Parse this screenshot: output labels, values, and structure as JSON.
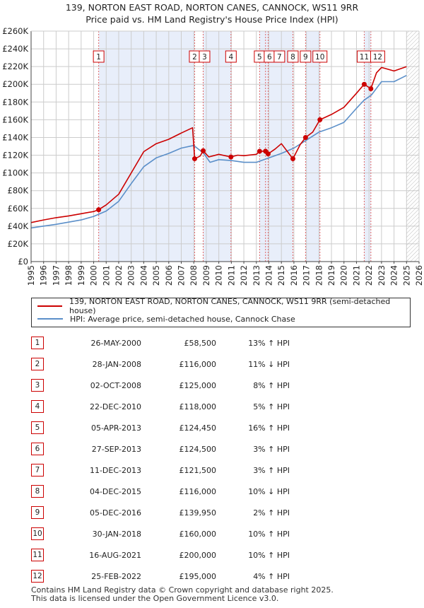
{
  "title_line1": "139, NORTON EAST ROAD, NORTON CANES, CANNOCK, WS11 9RR",
  "title_line2": "Price paid vs. HM Land Registry's House Price Index (HPI)",
  "legend": {
    "property_label": "139, NORTON EAST ROAD, NORTON CANES, CANNOCK, WS11 9RR (semi-detached house)",
    "hpi_label": "HPI: Average price, semi-detached house, Cannock Chase"
  },
  "colors": {
    "property": "#cc0000",
    "hpi": "#5b8fc9",
    "band": "#e8eefa",
    "grid": "#cccccc",
    "marker_line": "#e06666"
  },
  "sales": [
    {
      "num": "1",
      "date": "26-MAY-2000",
      "price": "£58,500",
      "hpi": "13% ↑ HPI"
    },
    {
      "num": "2",
      "date": "28-JAN-2008",
      "price": "£116,000",
      "hpi": "11% ↓ HPI"
    },
    {
      "num": "3",
      "date": "02-OCT-2008",
      "price": "£125,000",
      "hpi": "8% ↑ HPI"
    },
    {
      "num": "4",
      "date": "22-DEC-2010",
      "price": "£118,000",
      "hpi": "5% ↑ HPI"
    },
    {
      "num": "5",
      "date": "05-APR-2013",
      "price": "£124,450",
      "hpi": "16% ↑ HPI"
    },
    {
      "num": "6",
      "date": "27-SEP-2013",
      "price": "£124,500",
      "hpi": "3% ↑ HPI"
    },
    {
      "num": "7",
      "date": "11-DEC-2013",
      "price": "£121,500",
      "hpi": "3% ↑ HPI"
    },
    {
      "num": "8",
      "date": "04-DEC-2015",
      "price": "£116,000",
      "hpi": "10% ↓ HPI"
    },
    {
      "num": "9",
      "date": "05-DEC-2016",
      "price": "£139,950",
      "hpi": "2% ↑ HPI"
    },
    {
      "num": "10",
      "date": "30-JAN-2018",
      "price": "£160,000",
      "hpi": "10% ↑ HPI"
    },
    {
      "num": "11",
      "date": "16-AUG-2021",
      "price": "£200,000",
      "hpi": "10% ↑ HPI"
    },
    {
      "num": "12",
      "date": "25-FEB-2022",
      "price": "£195,000",
      "hpi": "4% ↑ HPI"
    }
  ],
  "footer_line1": "Contains HM Land Registry data © Crown copyright and database right 2025.",
  "footer_line2": "This data is licensed under the Open Government Licence v3.0.",
  "chart_data": {
    "type": "line",
    "xlim": [
      1995,
      2026
    ],
    "ylim": [
      0,
      260000
    ],
    "y_ticks": [
      0,
      20000,
      40000,
      60000,
      80000,
      100000,
      120000,
      140000,
      160000,
      180000,
      200000,
      220000,
      240000,
      260000
    ],
    "y_tick_labels": [
      "£0",
      "£20K",
      "£40K",
      "£60K",
      "£80K",
      "£100K",
      "£120K",
      "£140K",
      "£160K",
      "£180K",
      "£200K",
      "£220K",
      "£240K",
      "£260K"
    ],
    "x_ticks": [
      1995,
      1996,
      1997,
      1998,
      1999,
      2000,
      2001,
      2002,
      2003,
      2004,
      2005,
      2006,
      2007,
      2008,
      2009,
      2010,
      2011,
      2012,
      2013,
      2014,
      2015,
      2016,
      2017,
      2018,
      2019,
      2020,
      2021,
      2022,
      2023,
      2024,
      2025,
      2026
    ],
    "grid": true,
    "shaded_bands": [
      [
        2000.4,
        2008.07
      ],
      [
        2008.75,
        2010.97
      ],
      [
        2013.26,
        2015.92
      ],
      [
        2016.93,
        2018.08
      ],
      [
        2021.62,
        2022.15
      ]
    ],
    "hatched_after": 2025.0,
    "series": [
      {
        "name": "139, NORTON EAST ROAD, NORTON CANES, CANNOCK, WS11 9RR (semi-detached house)",
        "color": "#cc0000",
        "x": [
          1995.0,
          1996.0,
          1997.0,
          1998.0,
          1999.0,
          2000.0,
          2000.4,
          2001.0,
          2002.0,
          2003.0,
          2004.0,
          2005.0,
          2006.0,
          2007.0,
          2007.9,
          2008.07,
          2008.5,
          2008.75,
          2009.2,
          2010.0,
          2010.97,
          2011.5,
          2012.0,
          2013.0,
          2013.26,
          2013.73,
          2013.94,
          2014.5,
          2015.0,
          2015.92,
          2016.5,
          2016.93,
          2017.5,
          2018.08,
          2019.0,
          2020.0,
          2021.0,
          2021.62,
          2022.15,
          2022.6,
          2023.0,
          2024.0,
          2025.0
        ],
        "y": [
          44000,
          47000,
          49500,
          51500,
          54000,
          56500,
          58500,
          64000,
          76000,
          100000,
          124000,
          133000,
          138000,
          145000,
          151000,
          116000,
          119000,
          125000,
          118000,
          121000,
          118000,
          120000,
          119500,
          121000,
          124450,
          124500,
          121500,
          127000,
          133000,
          116000,
          132000,
          139950,
          146000,
          160000,
          166000,
          174000,
          190000,
          200000,
          195000,
          213000,
          219000,
          215000,
          220000
        ]
      },
      {
        "name": "HPI: Average price, semi-detached house, Cannock Chase",
        "color": "#5b8fc9",
        "x": [
          1995.0,
          1996.0,
          1997.0,
          1998.0,
          1999.0,
          2000.0,
          2001.0,
          2002.0,
          2003.0,
          2004.0,
          2005.0,
          2006.0,
          2007.0,
          2008.0,
          2008.8,
          2009.3,
          2010.0,
          2011.0,
          2012.0,
          2013.0,
          2014.0,
          2015.0,
          2016.0,
          2017.0,
          2018.0,
          2019.0,
          2020.0,
          2021.0,
          2021.6,
          2022.2,
          2023.0,
          2024.0,
          2025.0
        ],
        "y": [
          38000,
          40000,
          42000,
          44500,
          47000,
          51000,
          57000,
          68000,
          88000,
          107000,
          117000,
          122000,
          128000,
          131000,
          122000,
          112000,
          115000,
          114000,
          112000,
          112000,
          117000,
          122000,
          128000,
          137000,
          146000,
          151000,
          157000,
          173000,
          182000,
          188000,
          203000,
          203000,
          210000
        ]
      }
    ],
    "sale_markers": [
      {
        "label": "1",
        "x": 2000.4,
        "y": 58500
      },
      {
        "label": "2",
        "x": 2008.07,
        "y": 116000
      },
      {
        "label": "3",
        "x": 2008.75,
        "y": 125000
      },
      {
        "label": "4",
        "x": 2010.97,
        "y": 118000
      },
      {
        "label": "5",
        "x": 2013.26,
        "y": 124450
      },
      {
        "label": "6",
        "x": 2013.73,
        "y": 124500
      },
      {
        "label": "7",
        "x": 2013.94,
        "y": 121500
      },
      {
        "label": "8",
        "x": 2015.92,
        "y": 116000
      },
      {
        "label": "9",
        "x": 2016.93,
        "y": 139950
      },
      {
        "label": "10",
        "x": 2018.08,
        "y": 160000
      },
      {
        "label": "11",
        "x": 2021.62,
        "y": 200000
      },
      {
        "label": "12",
        "x": 2022.15,
        "y": 195000
      }
    ]
  }
}
